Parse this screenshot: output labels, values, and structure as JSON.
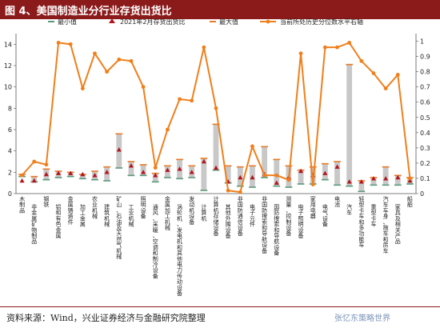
{
  "figure": {
    "title": "图 4、美国制造业分行业存货出货比",
    "source": "资料来源：Wind，兴业证券经济与金融研究院整理",
    "watermark": "张忆东策略世界"
  },
  "colors": {
    "title_bar": "#8b1a1a",
    "range_bar": "#c8c8c8",
    "min_marker": "#5a9a7a",
    "current_marker": "#b3141a",
    "max_marker": "#e87a2a",
    "percentile_line": "#f07f1b"
  },
  "chart_data": {
    "type": "bar",
    "legend": [
      "最小值",
      "2021年2月存货出货比",
      "最大值",
      "当前所处历史分位数水平右轴"
    ],
    "categories": [
      "木制品",
      "非金属矿物制品",
      "钢铁",
      "铝和有色金属",
      "金属铸造件",
      "加工金属",
      "农业机械",
      "建筑机械",
      "矿山、石油及天然气机械",
      "工业机械",
      "照明设备",
      "通风、采暖、空调和制冷设备",
      "金属加工机械",
      "涡轮机、发电机和其他电力传动设备",
      "发动机设备",
      "计算机",
      "计算机存储设备",
      "其他外围设备",
      "非国防通信设备",
      "电子元件",
      "非国防搜索和导航设备",
      "国防搜索和导航设备",
      "测量、控制设备",
      "电子照明设备",
      "家用电器",
      "电气设备",
      "电池",
      "汽车",
      "轻型卡车和多功能车",
      "重型卡车",
      "汽车车身、拖车和房车",
      "家具及相关产品",
      "船舶"
    ],
    "min": [
      1.6,
      1.1,
      1.3,
      1.5,
      1.6,
      1.4,
      1.3,
      1.2,
      2.4,
      1.7,
      1.7,
      1.1,
      1.5,
      1.4,
      1.5,
      0.3,
      2.2,
      1.0,
      0.7,
      0.6,
      1.5,
      0.7,
      0.6,
      0.9,
      0.9,
      1.3,
      0.8,
      0.7,
      0.2,
      0.8,
      0.8,
      0.8,
      0.9
    ],
    "current": [
      1.2,
      1.2,
      1.8,
      1.9,
      1.9,
      1.8,
      1.7,
      2.0,
      4.1,
      2.6,
      2.0,
      1.7,
      2.2,
      2.3,
      2.0,
      3.0,
      2.4,
      1.1,
      1.5,
      1.5,
      1.8,
      1.0,
      1.5,
      2.1,
      1.7,
      1.9,
      2.5,
      1.1,
      1.1,
      1.4,
      1.4,
      1.5,
      1.2
    ],
    "max": [
      1.8,
      1.6,
      2.3,
      2.1,
      2.0,
      1.8,
      2.1,
      2.5,
      5.6,
      3.0,
      2.7,
      1.9,
      2.6,
      3.2,
      2.6,
      3.3,
      6.5,
      2.6,
      2.5,
      2.6,
      4.4,
      3.2,
      2.6,
      2.2,
      2.5,
      2.8,
      3.0,
      12.1,
      1.2,
      1.5,
      2.5,
      1.7,
      1.5
    ],
    "percentile": [
      0.12,
      0.21,
      0.19,
      0.99,
      0.98,
      0.69,
      0.92,
      0.8,
      0.88,
      0.87,
      0.7,
      0.17,
      0.42,
      0.62,
      0.61,
      0.96,
      0.56,
      0.02,
      0.01,
      0.31,
      0.12,
      0.12,
      0.09,
      0.92,
      0.06,
      0.96,
      0.96,
      0.99,
      0.87,
      0.79,
      0.69,
      0.78,
      0.1
    ],
    "y_left_range": [
      0,
      15
    ],
    "y_left_ticks": [
      0,
      2,
      4,
      6,
      8,
      10,
      12,
      14
    ],
    "y_right_range": [
      0,
      1.05
    ],
    "y_right_ticks": [
      0,
      0.1,
      0.2,
      0.3,
      0.4,
      0.5,
      0.6,
      0.7,
      0.8,
      0.9,
      1
    ],
    "legend_position": "top",
    "grid": false
  }
}
